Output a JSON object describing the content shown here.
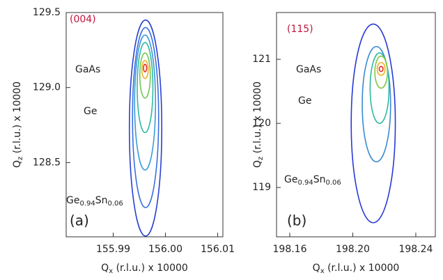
{
  "chart_data": [
    {
      "type": "contour",
      "panel": "(a)",
      "reflection": "(004)",
      "xlabel": [
        "Q",
        "x",
        " (r.l.u.) x 10000"
      ],
      "ylabel": [
        "Q",
        "z",
        " (r.l.u.) x 10000"
      ],
      "annotations": [
        [
          "GaAs"
        ],
        [
          "Ge"
        ],
        [
          "Ge",
          "0.94",
          "Sn",
          "0.06"
        ]
      ],
      "xlim": [
        155.981,
        156.011
      ],
      "ylim": [
        128.005,
        129.5
      ],
      "xticks": [
        155.99,
        {
          "value": 156,
          "label": "156.00"
        },
        156.01
      ],
      "yticks": [
        128.5,
        {
          "value": 129,
          "label": "129.0"
        },
        129.5
      ],
      "contours": [
        {
          "x": 155.9962,
          "y": 128.73,
          "rx": 0.0031,
          "ry": 0.72,
          "color": "#2a40d0"
        },
        {
          "x": 155.9962,
          "y": 128.8,
          "rx": 0.0025,
          "ry": 0.6,
          "color": "#3a70e0"
        },
        {
          "x": 155.9961,
          "y": 128.9,
          "rx": 0.002,
          "ry": 0.45,
          "color": "#3a9ad8"
        },
        {
          "x": 155.9961,
          "y": 129.0,
          "rx": 0.0015,
          "ry": 0.3,
          "color": "#30b8a0"
        },
        {
          "x": 155.9961,
          "y": 129.08,
          "rx": 0.001,
          "ry": 0.15,
          "color": "#70c850"
        },
        {
          "x": 155.9961,
          "y": 129.12,
          "rx": 0.0006,
          "ry": 0.06,
          "color": "#f0b020"
        },
        {
          "x": 155.9961,
          "y": 129.13,
          "rx": 0.0003,
          "ry": 0.025,
          "color": "#e03020"
        }
      ]
    },
    {
      "type": "contour",
      "panel": "(b)",
      "reflection": "(115)",
      "xlabel": [
        "Q",
        "x",
        " (r.l.u.) x 10000"
      ],
      "ylabel": [
        "Q",
        "z",
        " (r.l.u.) x 10000"
      ],
      "annotations": [
        [
          "GaAs"
        ],
        [
          "Ge"
        ],
        [
          "Ge",
          "0.94",
          "Sn",
          "0.06"
        ]
      ],
      "xlim": [
        198.1516,
        198.2524
      ],
      "ylim": [
        118.23,
        121.73
      ],
      "xticks": [
        198.16,
        {
          "value": 198.2,
          "label": "198.20"
        },
        198.24
      ],
      "yticks": [
        119,
        120,
        121
      ],
      "contours": [
        {
          "x": 198.213,
          "y": 120.0,
          "rx": 0.014,
          "ry": 1.55,
          "color": "#2838d8"
        },
        {
          "x": 198.215,
          "y": 120.3,
          "rx": 0.009,
          "ry": 0.9,
          "color": "#3a8ad0"
        },
        {
          "x": 198.217,
          "y": 120.55,
          "rx": 0.006,
          "ry": 0.55,
          "color": "#30b8a0"
        },
        {
          "x": 198.218,
          "y": 120.8,
          "rx": 0.004,
          "ry": 0.25,
          "color": "#80c840"
        },
        {
          "x": 198.218,
          "y": 120.85,
          "rx": 0.0025,
          "ry": 0.1,
          "color": "#f0b020"
        },
        {
          "x": 198.218,
          "y": 120.85,
          "rx": 0.0012,
          "ry": 0.04,
          "color": "#e03020"
        }
      ]
    }
  ]
}
